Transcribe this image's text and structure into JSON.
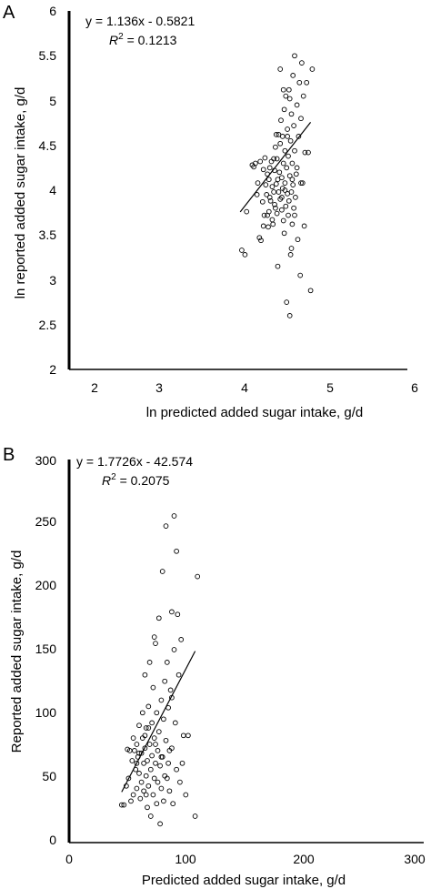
{
  "colors": {
    "ink": "#000000",
    "background": "#ffffff"
  },
  "chart_data": [
    {
      "type": "scatter",
      "panel_label": "A",
      "xlabel": "ln predicted added sugar intake, g/d",
      "ylabel": "ln reported added sugar intake, g/d",
      "xlim": [
        2,
        6
      ],
      "ylim": [
        2,
        6
      ],
      "xticks": [
        "2",
        "3",
        "4",
        "5",
        "6"
      ],
      "yticks": [
        "2",
        "2.5",
        "3",
        "3.5",
        "4",
        "4.5",
        "5",
        "5.5",
        "6"
      ],
      "equation": "y = 1.136x - 0.5821",
      "r2_label": "R",
      "r2_sup": "2",
      "r2_value": " = 0.1213",
      "trendline": {
        "slope": 1.136,
        "intercept": -0.5821,
        "x_range": [
          3.82,
          4.7
        ]
      },
      "grid": false,
      "legend": "none",
      "points": [
        [
          3.84,
          3.33
        ],
        [
          3.88,
          3.28
        ],
        [
          3.9,
          3.76
        ],
        [
          3.97,
          4.28
        ],
        [
          3.99,
          4.26
        ],
        [
          4.01,
          4.3
        ],
        [
          4.03,
          3.95
        ],
        [
          4.04,
          4.08
        ],
        [
          4.06,
          3.47
        ],
        [
          4.07,
          4.32
        ],
        [
          4.08,
          3.44
        ],
        [
          4.1,
          3.87
        ],
        [
          4.11,
          4.23
        ],
        [
          4.12,
          3.72
        ],
        [
          4.13,
          4.36
        ],
        [
          4.14,
          4.06
        ],
        [
          4.15,
          3.95
        ],
        [
          4.16,
          4.18
        ],
        [
          4.17,
          3.59
        ],
        [
          4.18,
          3.76
        ],
        [
          4.18,
          4.12
        ],
        [
          4.19,
          4.25
        ],
        [
          4.2,
          3.88
        ],
        [
          4.21,
          4.32
        ],
        [
          4.22,
          4.04
        ],
        [
          4.23,
          3.62
        ],
        [
          4.24,
          3.98
        ],
        [
          4.25,
          4.22
        ],
        [
          4.25,
          3.84
        ],
        [
          4.26,
          4.48
        ],
        [
          4.27,
          4.07
        ],
        [
          4.28,
          3.74
        ],
        [
          4.28,
          4.35
        ],
        [
          4.29,
          3.15
        ],
        [
          4.3,
          4.62
        ],
        [
          4.3,
          3.98
        ],
        [
          4.31,
          4.2
        ],
        [
          4.32,
          3.9
        ],
        [
          4.32,
          4.52
        ],
        [
          4.33,
          4.78
        ],
        [
          4.34,
          3.78
        ],
        [
          4.34,
          4.14
        ],
        [
          4.35,
          4.02
        ],
        [
          4.35,
          4.6
        ],
        [
          4.36,
          3.66
        ],
        [
          4.36,
          4.3
        ],
        [
          4.37,
          4.9
        ],
        [
          4.37,
          3.52
        ],
        [
          4.38,
          4.08
        ],
        [
          4.38,
          4.44
        ],
        [
          4.39,
          3.82
        ],
        [
          4.39,
          5.05
        ],
        [
          4.4,
          4.25
        ],
        [
          4.4,
          2.75
        ],
        [
          4.41,
          3.96
        ],
        [
          4.41,
          4.68
        ],
        [
          4.42,
          3.72
        ],
        [
          4.42,
          4.38
        ],
        [
          4.43,
          5.12
        ],
        [
          4.43,
          3.88
        ],
        [
          4.44,
          4.16
        ],
        [
          4.44,
          2.6
        ],
        [
          4.45,
          4.55
        ],
        [
          4.45,
          3.28
        ],
        [
          4.46,
          3.98
        ],
        [
          4.46,
          4.85
        ],
        [
          4.47,
          4.3
        ],
        [
          4.47,
          3.62
        ],
        [
          4.48,
          4.06
        ],
        [
          4.48,
          5.28
        ],
        [
          4.49,
          4.72
        ],
        [
          4.49,
          3.8
        ],
        [
          4.5,
          4.44
        ],
        [
          4.5,
          5.5
        ],
        [
          4.51,
          3.92
        ],
        [
          4.52,
          4.18
        ],
        [
          4.53,
          4.95
        ],
        [
          4.54,
          3.45
        ],
        [
          4.55,
          4.6
        ],
        [
          4.56,
          5.2
        ],
        [
          4.57,
          3.05
        ],
        [
          4.58,
          4.8
        ],
        [
          4.59,
          5.42
        ],
        [
          4.6,
          4.08
        ],
        [
          4.61,
          5.05
        ],
        [
          4.62,
          3.6
        ],
        [
          4.63,
          4.42
        ],
        [
          4.65,
          5.2
        ],
        [
          4.67,
          4.42
        ],
        [
          4.7,
          2.88
        ],
        [
          4.72,
          5.35
        ],
        [
          4.32,
          5.35
        ],
        [
          4.36,
          5.12
        ],
        [
          4.44,
          5.02
        ],
        [
          4.41,
          4.6
        ],
        [
          4.26,
          3.8
        ],
        [
          4.22,
          3.67
        ],
        [
          4.16,
          3.72
        ],
        [
          4.34,
          3.92
        ],
        [
          4.29,
          4.12
        ],
        [
          4.38,
          4.0
        ],
        [
          4.47,
          4.12
        ],
        [
          4.53,
          4.25
        ],
        [
          4.24,
          4.35
        ],
        [
          4.19,
          3.92
        ],
        [
          4.5,
          3.72
        ],
        [
          4.11,
          3.6
        ],
        [
          4.46,
          3.35
        ],
        [
          4.58,
          4.08
        ],
        [
          4.27,
          4.62
        ]
      ]
    },
    {
      "type": "scatter",
      "panel_label": "B",
      "xlabel": "Predicted added sugar intake, g/d",
      "ylabel": "Reported added sugar intake, g/d",
      "xlim": [
        0,
        300
      ],
      "ylim": [
        0,
        300
      ],
      "xticks": [
        "0",
        "100",
        "200",
        "300"
      ],
      "yticks": [
        "0",
        "50",
        "100",
        "150",
        "200",
        "250",
        "300"
      ],
      "equation": "y = 1.7726x - 42.574",
      "r2_label": "R",
      "r2_sup": "2",
      "r2_value": " = 0.2075",
      "trendline": {
        "slope": 1.7726,
        "intercept": -42.574,
        "x_range": [
          45,
          108
        ]
      },
      "grid": false,
      "legend": "none",
      "points": [
        [
          45,
          27
        ],
        [
          47,
          27
        ],
        [
          49,
          42
        ],
        [
          50,
          71
        ],
        [
          51,
          48
        ],
        [
          52,
          70
        ],
        [
          53,
          30
        ],
        [
          54,
          62
        ],
        [
          55,
          80
        ],
        [
          55,
          35
        ],
        [
          56,
          70
        ],
        [
          57,
          55
        ],
        [
          58,
          75
        ],
        [
          58,
          40
        ],
        [
          59,
          65
        ],
        [
          60,
          52
        ],
        [
          60,
          90
        ],
        [
          61,
          32
        ],
        [
          62,
          68
        ],
        [
          62,
          45
        ],
        [
          63,
          80
        ],
        [
          63,
          100
        ],
        [
          64,
          60
        ],
        [
          64,
          38
        ],
        [
          65,
          130
        ],
        [
          65,
          72
        ],
        [
          66,
          50
        ],
        [
          66,
          88
        ],
        [
          67,
          25
        ],
        [
          67,
          62
        ],
        [
          68,
          105
        ],
        [
          68,
          42
        ],
        [
          69,
          75
        ],
        [
          69,
          140
        ],
        [
          70,
          55
        ],
        [
          70,
          18
        ],
        [
          71,
          92
        ],
        [
          71,
          66
        ],
        [
          72,
          35
        ],
        [
          72,
          120
        ],
        [
          73,
          48
        ],
        [
          73,
          80
        ],
        [
          74,
          60
        ],
        [
          74,
          155
        ],
        [
          75,
          28
        ],
        [
          75,
          100
        ],
        [
          76,
          70
        ],
        [
          76,
          45
        ],
        [
          77,
          175
        ],
        [
          77,
          85
        ],
        [
          78,
          12
        ],
        [
          78,
          58
        ],
        [
          79,
          110
        ],
        [
          79,
          40
        ],
        [
          80,
          212
        ],
        [
          80,
          65
        ],
        [
          81,
          95
        ],
        [
          81,
          30
        ],
        [
          82,
          125
        ],
        [
          82,
          50
        ],
        [
          83,
          248
        ],
        [
          83,
          78
        ],
        [
          84,
          140
        ],
        [
          85,
          60
        ],
        [
          85,
          104
        ],
        [
          86,
          38
        ],
        [
          87,
          118
        ],
        [
          88,
          180
        ],
        [
          88,
          72
        ],
        [
          89,
          28
        ],
        [
          90,
          256
        ],
        [
          90,
          150
        ],
        [
          91,
          92
        ],
        [
          92,
          228
        ],
        [
          92,
          55
        ],
        [
          93,
          178
        ],
        [
          94,
          130
        ],
        [
          95,
          45
        ],
        [
          96,
          158
        ],
        [
          97,
          60
        ],
        [
          98,
          82
        ],
        [
          100,
          35
        ],
        [
          102,
          82
        ],
        [
          108,
          18
        ],
        [
          110,
          208
        ],
        [
          65,
          82
        ],
        [
          58,
          60
        ],
        [
          74,
          75
        ],
        [
          84,
          48
        ],
        [
          68,
          88
        ],
        [
          88,
          112
        ],
        [
          60,
          68
        ],
        [
          73,
          160
        ],
        [
          79,
          65
        ],
        [
          86,
          70
        ],
        [
          66,
          35
        ]
      ]
    }
  ]
}
